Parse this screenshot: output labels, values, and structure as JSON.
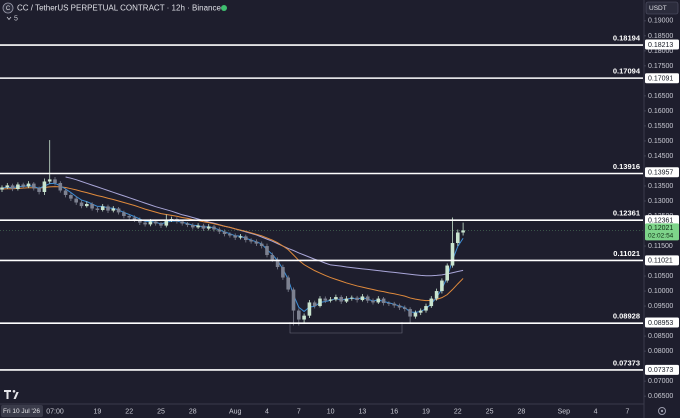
{
  "chart_data": {
    "type": "candlestick",
    "title": "CC / TetherUS PERPETUAL CONTRACT · 12h · Binance",
    "indicators_shown": 5,
    "currency": "USDT",
    "up_color": "#c9e4cf",
    "down_color": "#7d8190",
    "categories": [
      "Fri 10 Jul '26",
      null,
      null,
      null,
      null,
      null,
      null,
      null,
      null,
      null,
      "07:00",
      null,
      null,
      null,
      null,
      null,
      null,
      null,
      "19",
      null,
      null,
      null,
      null,
      null,
      "22",
      null,
      null,
      null,
      null,
      null,
      "25",
      null,
      null,
      null,
      null,
      null,
      "28",
      null,
      null,
      null,
      null,
      null,
      null,
      null,
      "Aug",
      null,
      null,
      null,
      null,
      null,
      "4",
      null,
      null,
      null,
      null,
      null,
      "7",
      null,
      null,
      null,
      null,
      null,
      "10",
      null,
      null,
      null,
      null,
      null,
      "13",
      null,
      null,
      null,
      null,
      null,
      "16",
      null,
      null,
      null,
      null,
      null,
      "19",
      null,
      null,
      null,
      null,
      null,
      "22",
      null,
      null,
      null,
      null,
      null,
      "25",
      null,
      null,
      null,
      null,
      null,
      "28",
      null,
      null,
      null,
      null,
      null,
      null,
      null,
      "Sep",
      null,
      null,
      null,
      null,
      null,
      "4",
      null,
      null,
      null,
      null,
      null,
      "7"
    ],
    "open": [
      0.1338,
      0.1345,
      0.1352,
      0.134,
      0.1355,
      0.1348,
      0.1358,
      0.1342,
      0.133,
      0.1365,
      0.1372,
      0.136,
      0.1335,
      0.132,
      0.1308,
      0.1295,
      0.1283,
      0.129,
      0.1275,
      0.127,
      0.1282,
      0.1268,
      0.1275,
      0.1262,
      0.125,
      0.1245,
      0.1238,
      0.1228,
      0.1222,
      0.1232,
      0.1225,
      0.1218,
      0.1235,
      0.124,
      0.1232,
      0.1225,
      0.122,
      0.1212,
      0.1218,
      0.1208,
      0.1215,
      0.1205,
      0.1198,
      0.119,
      0.1185,
      0.1178,
      0.1182,
      0.117,
      0.1165,
      0.1158,
      0.115,
      0.112,
      0.1105,
      0.108,
      0.1045,
      0.1005,
      0.0935,
      0.0905,
      0.0918,
      0.0962,
      0.095,
      0.0975,
      0.0968,
      0.0972,
      0.098,
      0.0965,
      0.0975,
      0.0978,
      0.097,
      0.0982,
      0.0968,
      0.0962,
      0.0975,
      0.096,
      0.0958,
      0.0952,
      0.0945,
      0.094,
      0.0915,
      0.0928,
      0.0935,
      0.095,
      0.0975,
      0.1,
      0.1035,
      0.1085,
      0.116,
      0.1195,
      null,
      null,
      null,
      null,
      null,
      null,
      null,
      null,
      null,
      null,
      null,
      null,
      null,
      null,
      null,
      null,
      null,
      null,
      null,
      null,
      null,
      null,
      null,
      null,
      null,
      null,
      null,
      null,
      null,
      null,
      null
    ],
    "high": [
      0.1352,
      0.136,
      0.1358,
      0.1362,
      0.1361,
      0.1366,
      0.1363,
      0.1348,
      0.1375,
      0.1503,
      0.138,
      0.1366,
      0.1342,
      0.1326,
      0.1315,
      0.1302,
      0.1298,
      0.1296,
      0.128,
      0.129,
      0.1288,
      0.1283,
      0.128,
      0.1268,
      0.1256,
      0.1252,
      0.1245,
      0.1235,
      0.124,
      0.1238,
      0.123,
      0.1255,
      0.1248,
      0.1246,
      0.1238,
      0.123,
      0.1226,
      0.1226,
      0.1224,
      0.1223,
      0.122,
      0.1212,
      0.1205,
      0.1196,
      0.1192,
      0.119,
      0.1188,
      0.1176,
      0.1172,
      0.1165,
      0.1158,
      0.1128,
      0.1112,
      0.1088,
      0.1052,
      0.1012,
      0.0942,
      0.0925,
      0.097,
      0.0968,
      0.0983,
      0.0982,
      0.098,
      0.0988,
      0.0986,
      0.0983,
      0.0985,
      0.0984,
      0.099,
      0.0988,
      0.0975,
      0.0983,
      0.098,
      0.0966,
      0.0964,
      0.0958,
      0.0952,
      0.0946,
      0.0935,
      0.0942,
      0.0958,
      0.0983,
      0.1008,
      0.1042,
      0.1092,
      0.1245,
      0.1205,
      0.1228,
      null,
      null,
      null,
      null,
      null,
      null,
      null,
      null,
      null,
      null,
      null,
      null,
      null,
      null,
      null,
      null,
      null,
      null,
      null,
      null,
      null,
      null,
      null,
      null,
      null,
      null,
      null,
      null,
      null,
      null,
      null
    ],
    "low": [
      0.133,
      0.134,
      0.1333,
      0.1335,
      0.1342,
      0.1343,
      0.1335,
      0.1322,
      0.132,
      0.1358,
      0.1352,
      0.1328,
      0.1312,
      0.13,
      0.1287,
      0.1276,
      0.1278,
      0.1268,
      0.1262,
      0.1265,
      0.126,
      0.1262,
      0.1255,
      0.1242,
      0.1238,
      0.123,
      0.122,
      0.1215,
      0.1216,
      0.1218,
      0.121,
      0.1212,
      0.123,
      0.1225,
      0.1218,
      0.1213,
      0.1205,
      0.1207,
      0.12,
      0.1202,
      0.1198,
      0.119,
      0.1182,
      0.1178,
      0.117,
      0.1172,
      0.1162,
      0.1158,
      0.115,
      0.1142,
      0.1112,
      0.1097,
      0.1072,
      0.1037,
      0.0997,
      0.0885,
      0.0885,
      0.0895,
      0.091,
      0.0942,
      0.0945,
      0.096,
      0.0962,
      0.0966,
      0.0957,
      0.096,
      0.0968,
      0.0962,
      0.0965,
      0.096,
      0.0955,
      0.0957,
      0.0952,
      0.095,
      0.0944,
      0.0937,
      0.0932,
      0.0893,
      0.0908,
      0.092,
      0.0928,
      0.0944,
      0.0968,
      0.0992,
      0.1028,
      0.1078,
      0.115,
      0.1185,
      null,
      null,
      null,
      null,
      null,
      null,
      null,
      null,
      null,
      null,
      null,
      null,
      null,
      null,
      null,
      null,
      null,
      null,
      null,
      null,
      null,
      null,
      null,
      null,
      null,
      null,
      null,
      null,
      null,
      null,
      null
    ],
    "close": [
      0.1345,
      0.1352,
      0.134,
      0.1355,
      0.1348,
      0.1358,
      0.1342,
      0.133,
      0.1365,
      0.1372,
      0.136,
      0.1335,
      0.132,
      0.1308,
      0.1295,
      0.1283,
      0.129,
      0.1275,
      0.127,
      0.1282,
      0.1268,
      0.1275,
      0.1262,
      0.125,
      0.1245,
      0.1238,
      0.1228,
      0.1222,
      0.1232,
      0.1225,
      0.1218,
      0.1235,
      0.124,
      0.1232,
      0.1225,
      0.122,
      0.1212,
      0.1218,
      0.1208,
      0.1215,
      0.1205,
      0.1198,
      0.119,
      0.1185,
      0.1178,
      0.1182,
      0.117,
      0.1165,
      0.1158,
      0.115,
      0.112,
      0.1105,
      0.108,
      0.1045,
      0.1005,
      0.0935,
      0.0905,
      0.0918,
      0.0962,
      0.095,
      0.0975,
      0.0968,
      0.0972,
      0.098,
      0.0965,
      0.0975,
      0.0978,
      0.097,
      0.0982,
      0.0968,
      0.0962,
      0.0975,
      0.096,
      0.0958,
      0.0952,
      0.0945,
      0.094,
      0.0915,
      0.0928,
      0.0935,
      0.095,
      0.0975,
      0.1,
      0.1035,
      0.1085,
      0.116,
      0.1195,
      0.1202,
      null,
      null,
      null,
      null,
      null,
      null,
      null,
      null,
      null,
      null,
      null,
      null,
      null,
      null,
      null,
      null,
      null,
      null,
      null,
      null,
      null,
      null,
      null,
      null,
      null,
      null,
      null,
      null,
      null,
      null,
      null
    ],
    "indicators": [
      {
        "color": "#a9a6d8",
        "values": [
          null,
          null,
          null,
          null,
          null,
          null,
          null,
          null,
          null,
          null,
          null,
          null,
          0.138,
          0.1376,
          0.1371,
          0.1365,
          0.1359,
          0.1353,
          0.1347,
          0.1341,
          0.1335,
          0.1329,
          0.1323,
          0.1317,
          0.1311,
          0.1305,
          0.1299,
          0.1293,
          0.1287,
          0.1281,
          0.1276,
          0.1271,
          0.1266,
          0.126,
          0.1254,
          0.125,
          0.1245,
          0.124,
          0.1235,
          0.123,
          0.1226,
          0.1221,
          0.1216,
          0.1212,
          0.1207,
          0.1202,
          0.1197,
          0.1192,
          0.1187,
          0.118,
          0.1173,
          0.1166,
          0.1158,
          0.115,
          0.1142,
          0.1135,
          0.1127,
          0.112,
          0.1113,
          0.1106,
          0.11,
          0.1093,
          0.1087,
          0.1085,
          0.1083,
          0.108,
          0.1078,
          0.1076,
          0.1074,
          0.1072,
          0.107,
          0.1068,
          0.1066,
          0.1064,
          0.1062,
          0.106,
          0.1058,
          0.1056,
          0.1054,
          0.1052,
          0.1051,
          0.1051,
          0.1052,
          0.1054,
          0.1057,
          0.1061,
          0.1065,
          0.1069,
          null,
          null,
          null,
          null,
          null,
          null,
          null,
          null,
          null,
          null,
          null,
          null,
          null,
          null,
          null,
          null,
          null,
          null,
          null,
          null,
          null,
          null,
          null,
          null,
          null,
          null,
          null,
          null,
          null,
          null,
          null
        ]
      },
      {
        "color": "#e08a3c",
        "values": [
          0.134,
          0.1341,
          0.1341,
          0.1342,
          0.1343,
          0.1344,
          0.1344,
          0.1343,
          0.1345,
          0.1347,
          0.1348,
          0.1347,
          0.1345,
          0.1341,
          0.1337,
          0.1332,
          0.1328,
          0.1323,
          0.1318,
          0.1314,
          0.1309,
          0.1305,
          0.13,
          0.1295,
          0.129,
          0.1285,
          0.1279,
          0.1273,
          0.1268,
          0.1263,
          0.1258,
          0.1255,
          0.1252,
          0.1249,
          0.1245,
          0.1242,
          0.1238,
          0.1235,
          0.1231,
          0.1228,
          0.1224,
          0.122,
          0.1216,
          0.1212,
          0.1207,
          0.1203,
          0.1199,
          0.1194,
          0.1189,
          0.1184,
          0.1177,
          0.117,
          0.1161,
          0.115,
          0.1138,
          0.112,
          0.1102,
          0.1088,
          0.1078,
          0.1068,
          0.106,
          0.1052,
          0.1045,
          0.1039,
          0.1033,
          0.1027,
          0.1022,
          0.1017,
          0.1013,
          0.1009,
          0.1005,
          0.1001,
          0.0998,
          0.0994,
          0.0991,
          0.0987,
          0.0983,
          0.0977,
          0.0973,
          0.097,
          0.0968,
          0.0969,
          0.0972,
          0.0978,
          0.0988,
          0.1005,
          0.1024,
          0.1042,
          null,
          null,
          null,
          null,
          null,
          null,
          null,
          null,
          null,
          null,
          null,
          null,
          null,
          null,
          null,
          null,
          null,
          null,
          null,
          null,
          null,
          null,
          null,
          null,
          null,
          null,
          null,
          null,
          null,
          null,
          null
        ]
      },
      {
        "color": "#3f8fd6",
        "values": [
          0.1343,
          0.1346,
          0.1344,
          0.1348,
          0.1348,
          0.1352,
          0.1348,
          0.1342,
          0.135,
          0.1358,
          0.1359,
          0.135,
          0.134,
          0.1328,
          0.1315,
          0.1303,
          0.1298,
          0.129,
          0.1282,
          0.1282,
          0.1277,
          0.1276,
          0.127,
          0.1262,
          0.1255,
          0.1248,
          0.124,
          0.1232,
          0.1232,
          0.1229,
          0.1224,
          0.1229,
          0.1233,
          0.1233,
          0.1229,
          0.1225,
          0.1219,
          0.1218,
          0.1213,
          0.1214,
          0.121,
          0.1204,
          0.1197,
          0.1191,
          0.1184,
          0.1183,
          0.1176,
          0.117,
          0.1164,
          0.1157,
          0.1138,
          0.1122,
          0.1101,
          0.1073,
          0.1039,
          0.0987,
          0.0946,
          0.0932,
          0.0947,
          0.0949,
          0.0962,
          0.0965,
          0.0969,
          0.0975,
          0.097,
          0.0973,
          0.0976,
          0.0973,
          0.0978,
          0.0973,
          0.0967,
          0.0971,
          0.0965,
          0.0961,
          0.0956,
          0.095,
          0.0945,
          0.093,
          0.0929,
          0.0932,
          0.0941,
          0.0958,
          0.0979,
          0.1007,
          0.1046,
          0.1103,
          0.1149,
          0.1176,
          null,
          null,
          null,
          null,
          null,
          null,
          null,
          null,
          null,
          null,
          null,
          null,
          null,
          null,
          null,
          null,
          null,
          null,
          null,
          null,
          null,
          null,
          null,
          null,
          null,
          null,
          null,
          null,
          null,
          null,
          null
        ]
      }
    ],
    "levels": [
      {
        "value": 0.18194,
        "axis_value": 0.18213
      },
      {
        "value": 0.17094,
        "axis_value": 0.17091
      },
      {
        "value": 0.13916,
        "axis_value": 0.13957
      },
      {
        "value": 0.12361,
        "axis_value": 0.12361
      },
      {
        "value": 0.11021,
        "axis_value": 0.11021
      },
      {
        "value": 0.08928,
        "axis_value": 0.08953
      },
      {
        "value": 0.07373,
        "axis_value": 0.07373
      }
    ],
    "last_price": {
      "value": 0.12021,
      "countdown": "02:02:54",
      "color": "#7ed48a"
    },
    "ylim": [
      0.0627,
      0.1923
    ],
    "yticks": [
      {
        "value": 0.19,
        "label": "0.19000"
      },
      {
        "value": 0.185,
        "label": "0.18500"
      },
      {
        "value": 0.18,
        "label": "0.18000"
      },
      {
        "value": 0.175,
        "label": "0.17500"
      },
      {
        "value": 0.165,
        "label": "0.16500"
      },
      {
        "value": 0.16,
        "label": "0.16000"
      },
      {
        "value": 0.155,
        "label": "0.15500"
      },
      {
        "value": 0.15,
        "label": "0.15000"
      },
      {
        "value": 0.145,
        "label": "0.14500"
      },
      {
        "value": 0.135,
        "label": "0.13500"
      },
      {
        "value": 0.13,
        "label": "0.13000"
      },
      {
        "value": 0.125,
        "label": "0.12500"
      },
      {
        "value": 0.115,
        "label": "0.11500"
      },
      {
        "value": 0.105,
        "label": "0.10500"
      },
      {
        "value": 0.1,
        "label": "0.10000"
      },
      {
        "value": 0.095,
        "label": "0.09500"
      },
      {
        "value": 0.085,
        "label": "0.08500"
      },
      {
        "value": 0.08,
        "label": "0.08000"
      },
      {
        "value": 0.07,
        "label": "0.07000"
      },
      {
        "value": 0.065,
        "label": "0.06500"
      }
    ]
  }
}
